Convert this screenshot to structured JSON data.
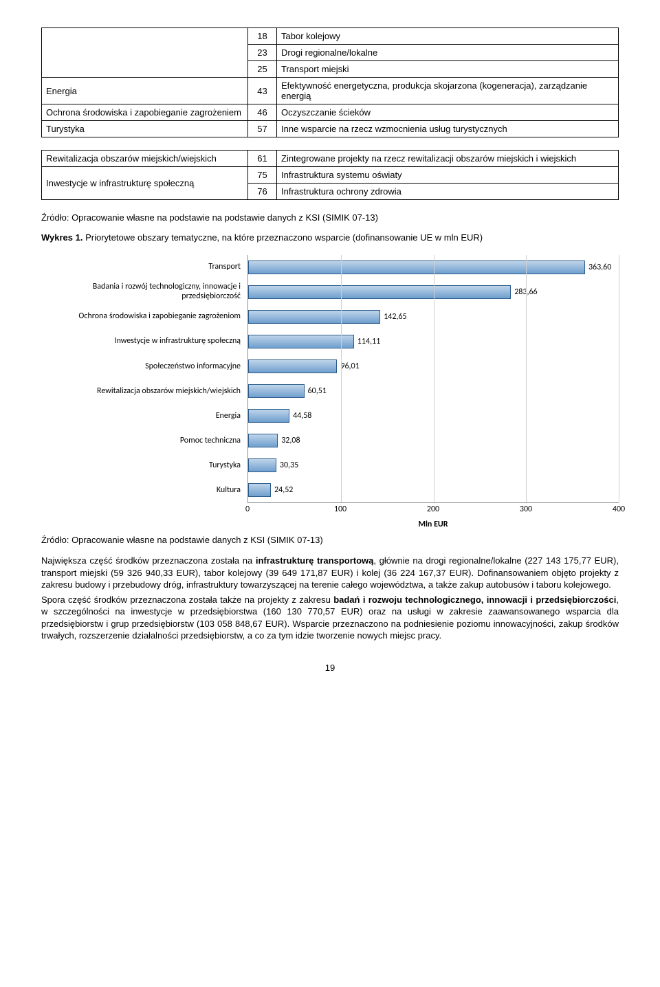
{
  "table1": {
    "rows": [
      {
        "label": "",
        "num": "18",
        "desc": "Tabor kolejowy"
      },
      {
        "label": "",
        "num": "23",
        "desc": "Drogi regionalne/lokalne"
      },
      {
        "label": "",
        "num": "25",
        "desc": "Transport miejski"
      },
      {
        "label": "Energia",
        "num": "43",
        "desc": "Efektywność energetyczna, produkcja skojarzona (kogeneracja), zarządzanie energią"
      },
      {
        "label": "Ochrona środowiska i zapobieganie zagrożeniem",
        "num": "46",
        "desc": "Oczyszczanie ścieków"
      },
      {
        "label": "Turystyka",
        "num": "57",
        "desc": "Inne wsparcie na rzecz wzmocnienia usług turystycznych"
      }
    ]
  },
  "table2": {
    "rows": [
      {
        "label": "Rewitalizacja obszarów miejskich/wiejskich",
        "num": "61",
        "desc": "Zintegrowane projekty na rzecz rewitalizacji obszarów miejskich i wiejskich"
      },
      {
        "label": "Inwestycje w infrastrukturę społeczną",
        "num": "75",
        "desc": "Infrastruktura systemu oświaty",
        "rowspan": 2
      },
      {
        "label": "",
        "num": "76",
        "desc": "Infrastruktura ochrony zdrowia"
      }
    ]
  },
  "source1": "Źródło: Opracowanie własne na podstawie na podstawie danych z KSI (SIMIK 07-13)",
  "wykres_title_bold": "Wykres 1.",
  "wykres_title_rest": " Priorytetowe obszary tematyczne, na które przeznaczono wsparcie (dofinansowanie UE w mln EUR)",
  "chart": {
    "type": "bar",
    "xmax": 400,
    "xticks": [
      0,
      100,
      200,
      300,
      400
    ],
    "xaxis_label": "Mln EUR",
    "bar_fill_top": "#bfd4ea",
    "bar_fill_bottom": "#6f9fce",
    "bar_border": "#2a5a8a",
    "grid_color": "#cfcfcf",
    "categories": [
      {
        "label": "Transport",
        "value": 363.6,
        "vstr": "363,60"
      },
      {
        "label": "Badania i rozwój technologiczny, innowacje i przedsiębiorczość",
        "value": 283.66,
        "vstr": "283,66"
      },
      {
        "label": "Ochrona środowiska i zapobieganie zagrożeniom",
        "value": 142.65,
        "vstr": "142,65"
      },
      {
        "label": "Inwestycje w infrastrukturę społeczną",
        "value": 114.11,
        "vstr": "114,11"
      },
      {
        "label": "Społeczeństwo informacyjne",
        "value": 96.01,
        "vstr": "96,01"
      },
      {
        "label": "Rewitalizacja obszarów miejskich/wiejskich",
        "value": 60.51,
        "vstr": "60,51"
      },
      {
        "label": "Energia",
        "value": 44.58,
        "vstr": "44,58"
      },
      {
        "label": "Pomoc techniczna",
        "value": 32.08,
        "vstr": "32,08"
      },
      {
        "label": "Turystyka",
        "value": 30.35,
        "vstr": "30,35"
      },
      {
        "label": "Kultura",
        "value": 24.52,
        "vstr": "24,52"
      }
    ]
  },
  "source2": "Źródło: Opracowanie własne na podstawie danych z KSI (SIMIK 07-13)",
  "para1_lead": "Największa część środków przeznaczona została na ",
  "para1_bold": "infrastrukturę transportową",
  "para1_rest": ", głównie na drogi regionalne/lokalne (227 143 175,77 EUR), transport miejski (59 326 940,33 EUR), tabor kolejowy (39 649 171,87 EUR) i kolej (36 224 167,37 EUR). Dofinansowaniem objęto projekty z zakresu budowy i przebudowy dróg, infrastruktury towarzyszącej na terenie całego województwa, a także zakup autobusów i taboru kolejowego.",
  "para2_lead": "Spora część środków przeznaczona została także na projekty z zakresu ",
  "para2_bold": "badań i rozwoju technologicznego, innowacji i przedsiębiorczości",
  "para2_rest": ", w szczególności na inwestycje w przedsiębiorstwa (160 130 770,57 EUR) oraz na usługi w zakresie zaawansowanego wsparcia dla przedsiębiorstw i grup przedsiębiorstw (103 058 848,67 EUR). Wsparcie przeznaczono na podniesienie poziomu innowacyjności, zakup środków trwałych, rozszerzenie działalności przedsiębiorstw, a co za tym idzie tworzenie nowych miejsc pracy.",
  "page_number": "19"
}
